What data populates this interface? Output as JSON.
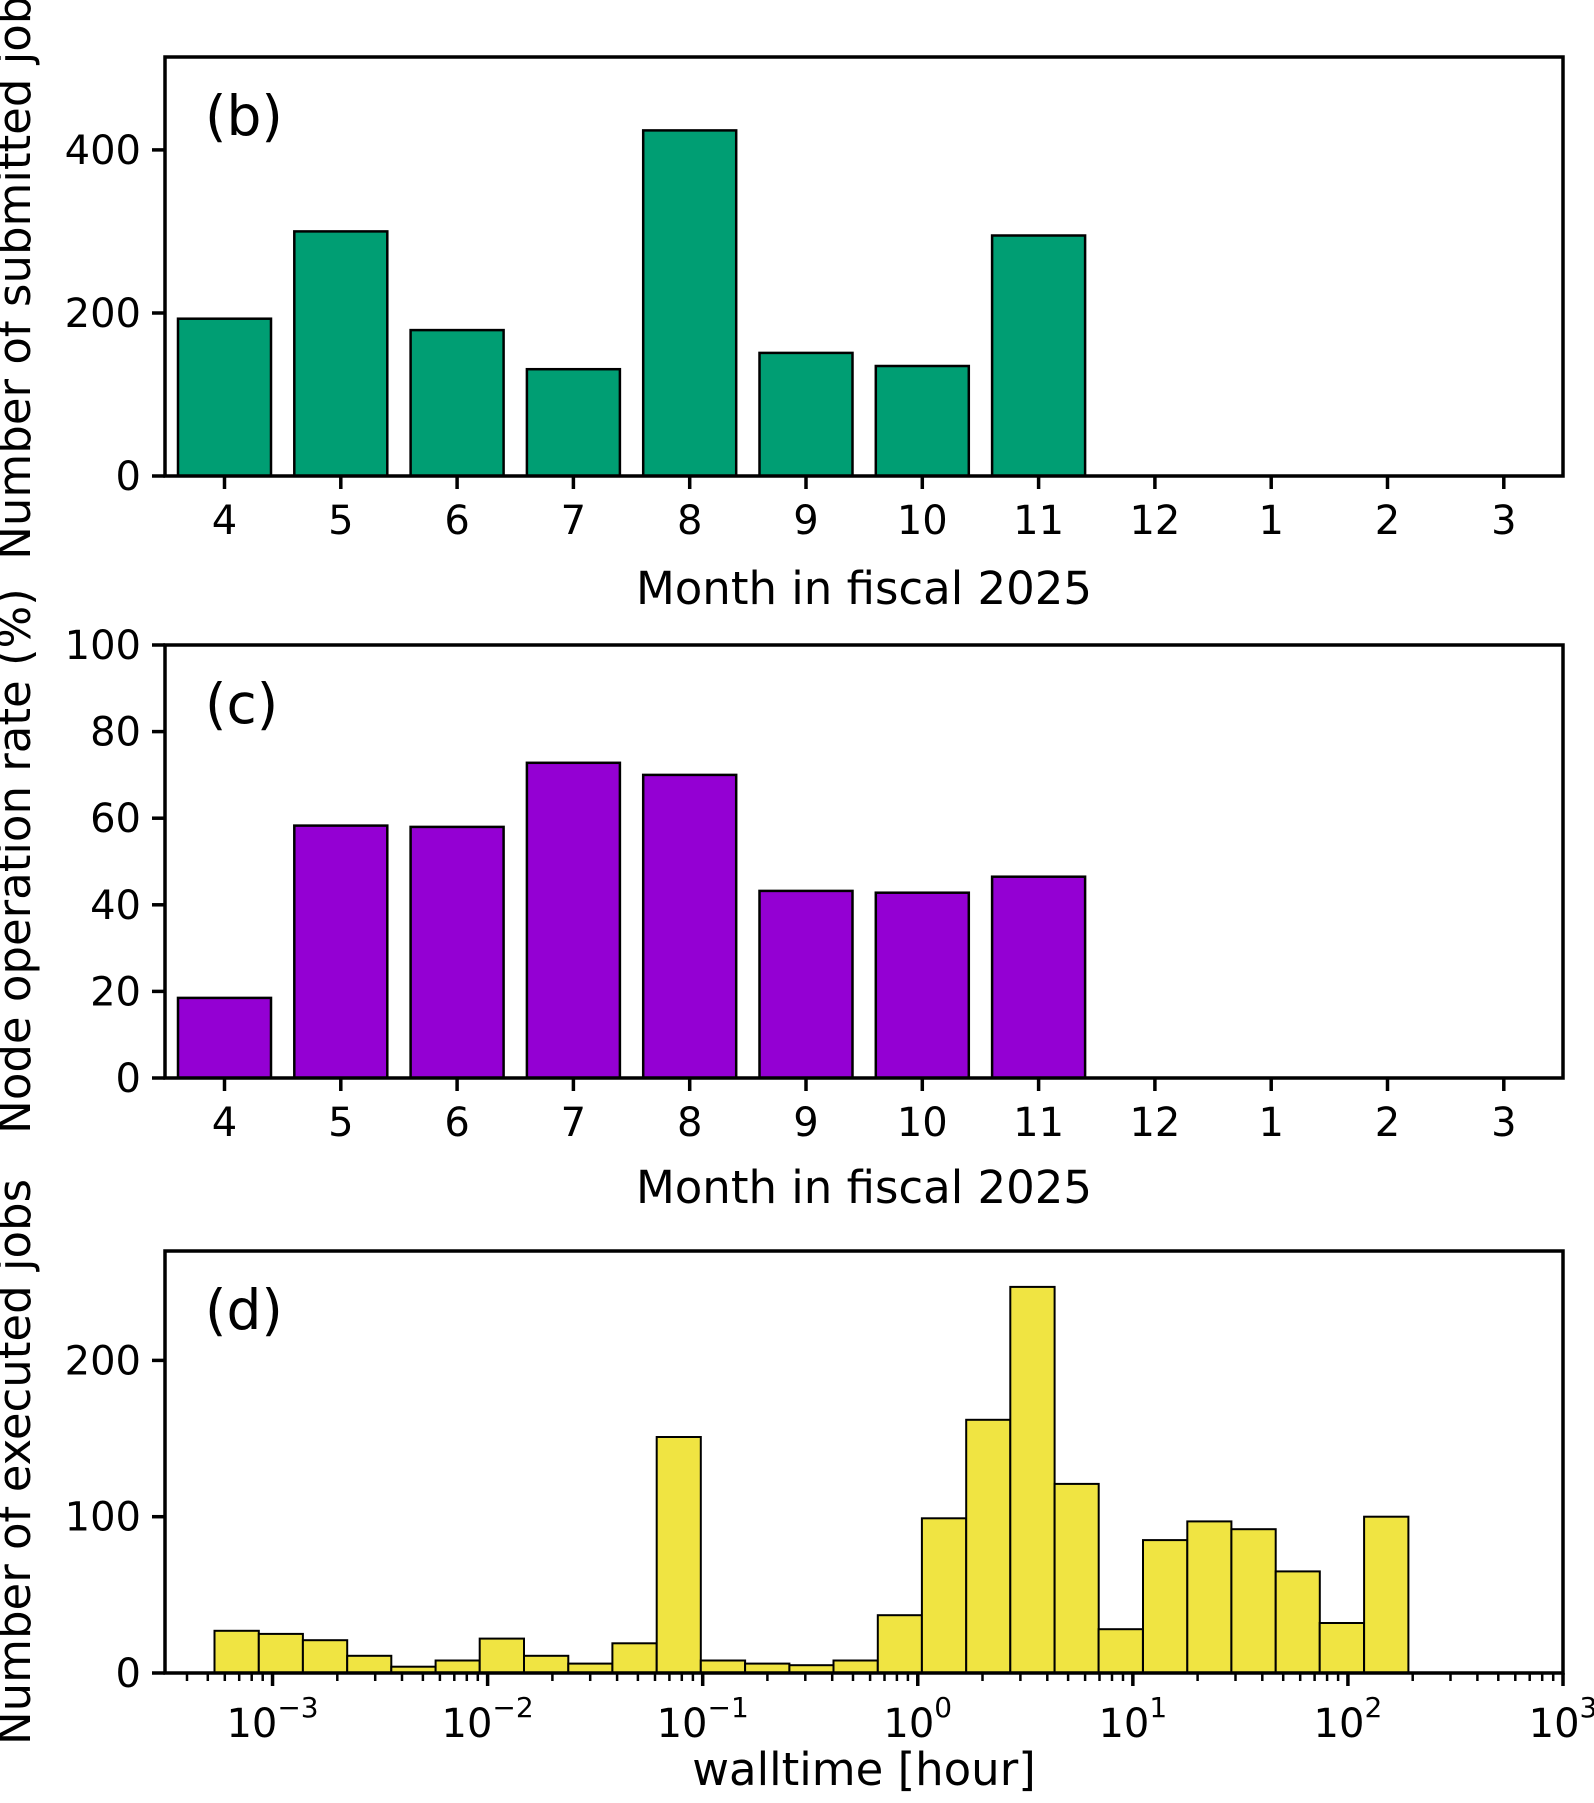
{
  "figure": {
    "background": "#ffffff",
    "text_color": "#000000",
    "panel_letters": [
      "(b)",
      "(c)",
      "(d)"
    ]
  },
  "chart_data": [
    {
      "type": "bar",
      "panel_label": "(b)",
      "title": "",
      "xlabel": "Month in fiscal 2025",
      "ylabel": "Number of submitted jobs",
      "categories": [
        "4",
        "5",
        "6",
        "7",
        "8",
        "9",
        "10",
        "11",
        "12",
        "1",
        "2",
        "3"
      ],
      "values": [
        193,
        300,
        179,
        131,
        424,
        151,
        135,
        295,
        0,
        0,
        0,
        0
      ],
      "yticks": [
        0,
        200,
        400
      ],
      "ylim": [
        0,
        514
      ],
      "bar_color": "#009E73",
      "edge_color": "#000000",
      "grid": false,
      "legend": "none"
    },
    {
      "type": "bar",
      "panel_label": "(c)",
      "title": "",
      "xlabel": "Month in fiscal 2025",
      "ylabel": "Node operation rate (%)",
      "categories": [
        "4",
        "5",
        "6",
        "7",
        "8",
        "9",
        "10",
        "11",
        "12",
        "1",
        "2",
        "3"
      ],
      "values": [
        18.5,
        58.3,
        58.0,
        72.8,
        70.0,
        43.2,
        42.8,
        46.5,
        0,
        0,
        0,
        0
      ],
      "yticks": [
        0,
        20,
        40,
        60,
        80,
        100
      ],
      "ylim": [
        0,
        100
      ],
      "bar_color": "#9400D3",
      "edge_color": "#000000",
      "grid": false,
      "legend": "none"
    },
    {
      "type": "histogram",
      "panel_label": "(d)",
      "title": "",
      "xlabel": "walltime [hour]",
      "ylabel": "Number of executed jobs",
      "x_scale": "log",
      "xlim_log10": [
        -3.5,
        3
      ],
      "xtick_exponents": [
        -3,
        -2,
        -1,
        0,
        1,
        2,
        3
      ],
      "bin_edges_log10": [
        -3.27,
        -3.064,
        -2.859,
        -2.653,
        -2.448,
        -2.242,
        -2.037,
        -1.831,
        -1.625,
        -1.42,
        -1.214,
        -1.009,
        -0.803,
        -0.597,
        -0.392,
        -0.186,
        0.019,
        0.225,
        0.43,
        0.636,
        0.841,
        1.047,
        1.253,
        1.458,
        1.664,
        1.869,
        2.075,
        2.281
      ],
      "counts": [
        27,
        25,
        21,
        11,
        4,
        8,
        22,
        11,
        6,
        19,
        151,
        8,
        6,
        5,
        8,
        37,
        99,
        162,
        247,
        121,
        28,
        85,
        97,
        92,
        65,
        32,
        100
      ],
      "yticks": [
        0,
        100,
        200
      ],
      "ylim": [
        0,
        270
      ],
      "bar_color": "#F0E442",
      "edge_color": "#000000",
      "grid": false,
      "legend": "none"
    }
  ]
}
